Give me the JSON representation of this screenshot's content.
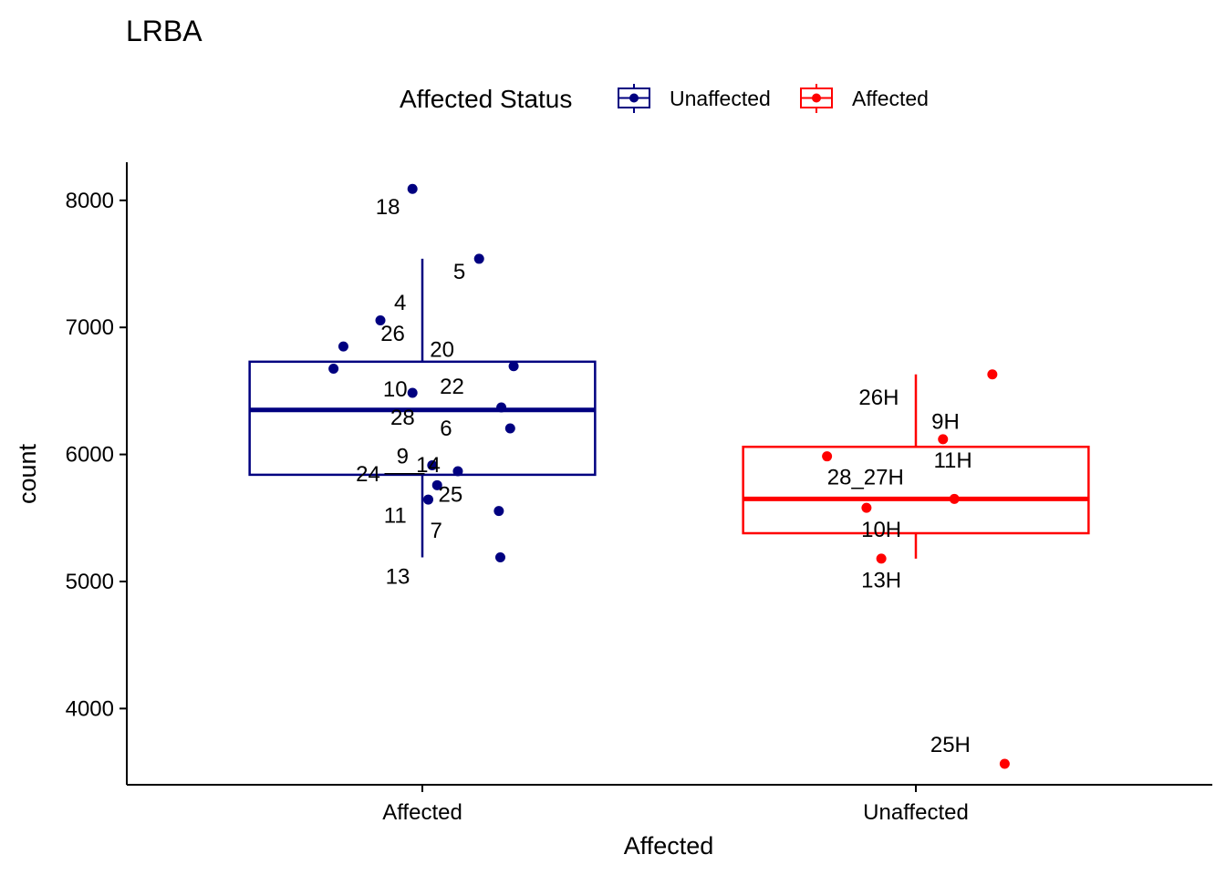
{
  "chart_data": {
    "type": "boxplot",
    "title": "LRBA",
    "xlabel": "Affected",
    "ylabel": "count",
    "ylim": [
      3400,
      8300
    ],
    "yticks": [
      4000,
      5000,
      6000,
      7000,
      8000
    ],
    "categories": [
      "Affected",
      "Unaffected"
    ],
    "legend": {
      "title": "Affected Status",
      "position": "top",
      "entries": [
        {
          "label": "Unaffected",
          "color": "#000080"
        },
        {
          "label": "Affected",
          "color": "#ff0000"
        }
      ]
    },
    "boxes": [
      {
        "category": "Affected",
        "group": "Unaffected",
        "color": "#000080",
        "whisker_low": 5190,
        "q1": 5840,
        "median": 6350,
        "q3": 6730,
        "whisker_high": 7540
      },
      {
        "category": "Unaffected",
        "group": "Affected",
        "color": "#ff0000",
        "whisker_low": 5180,
        "q1": 5380,
        "median": 5650,
        "q3": 6060,
        "whisker_high": 6630
      }
    ],
    "points": [
      {
        "category": "Affected",
        "color": "#000080",
        "jitter": -0.02,
        "y": 8090,
        "label": "18",
        "label_dx": -0.05,
        "label_dy": -140
      },
      {
        "category": "Affected",
        "color": "#000080",
        "jitter": 0.115,
        "y": 7540,
        "label": "5",
        "label_dx": -0.04,
        "label_dy": -100
      },
      {
        "category": "Affected",
        "color": "#000080",
        "jitter": -0.085,
        "y": 7055,
        "label": "4",
        "label_dx": 0.04,
        "label_dy": 140
      },
      {
        "category": "Affected",
        "color": "#000080",
        "jitter": -0.16,
        "y": 6850,
        "label": "26",
        "label_dx": 0.1,
        "label_dy": 100
      },
      {
        "category": "Affected",
        "color": "#000080",
        "jitter": -0.18,
        "y": 6675,
        "label": "20",
        "label_dx": 0.22,
        "label_dy": 150
      },
      {
        "category": "Affected",
        "color": "#000080",
        "jitter": 0.185,
        "y": 6695,
        "label": "10",
        "label_dx": -0.24,
        "label_dy": -180
      },
      {
        "category": "Affected",
        "color": "#000080",
        "jitter": -0.02,
        "y": 6485,
        "label": "22",
        "label_dx": 0.08,
        "label_dy": 50
      },
      {
        "category": "Affected",
        "color": "#000080",
        "jitter": 0.16,
        "y": 6370,
        "label": "28",
        "label_dx": -0.2,
        "label_dy": -80
      },
      {
        "category": "Affected",
        "color": "#000080",
        "jitter": 0.178,
        "y": 6205,
        "label": "6",
        "label_dx": -0.13,
        "label_dy": 0
      },
      {
        "category": "Affected",
        "color": "#000080",
        "jitter": 0.02,
        "y": 5915,
        "label": "9",
        "label_dx": -0.06,
        "label_dy": 70
      },
      {
        "category": "Affected",
        "color": "#000080",
        "jitter": 0.072,
        "y": 5868,
        "label": "14",
        "label_dx": -0.06,
        "label_dy": 50
      },
      {
        "category": "Affected",
        "color": "#000080",
        "jitter": 0.03,
        "y": 5758,
        "label": "24",
        "label_dx": -0.14,
        "label_dy": 90
      },
      {
        "category": "Affected",
        "color": "#000080",
        "jitter": 0.012,
        "y": 5645,
        "label": "25",
        "label_dx": 0.045,
        "label_dy": 40
      },
      {
        "category": "Affected",
        "color": "#000080",
        "jitter": 0.155,
        "y": 5555,
        "label": "11",
        "label_dx": -0.21,
        "label_dy": -35
      },
      {
        "category": "Affected",
        "color": "#000080",
        "jitter": 0.158,
        "y": 5190,
        "label": "7",
        "label_dx": -0.13,
        "label_dy": 210
      },
      {
        "category": "Affected",
        "color": "#000080",
        "jitter": null,
        "y": null,
        "label": "13",
        "label_x": -0.05,
        "label_y": 5040
      },
      {
        "category": "Unaffected",
        "color": "#ff0000",
        "jitter": 0.155,
        "y": 6630,
        "label": "26H",
        "label_dx": -0.23,
        "label_dy": -180
      },
      {
        "category": "Unaffected",
        "color": "#ff0000",
        "jitter": 0.055,
        "y": 6120,
        "label": "9H",
        "label_dx": 0.005,
        "label_dy": 140
      },
      {
        "category": "Unaffected",
        "color": "#ff0000",
        "jitter": -0.18,
        "y": 5985,
        "label": "11H",
        "label_dx": 0.255,
        "label_dy": -30
      },
      {
        "category": "Unaffected",
        "color": "#ff0000",
        "jitter": 0.078,
        "y": 5650,
        "label": "28_27H",
        "label_dx": -0.18,
        "label_dy": 170
      },
      {
        "category": "Unaffected",
        "color": "#ff0000",
        "jitter": -0.1,
        "y": 5580,
        "label": "10H",
        "label_dx": 0.03,
        "label_dy": -170
      },
      {
        "category": "Unaffected",
        "color": "#ff0000",
        "jitter": -0.07,
        "y": 5180,
        "label": "13H",
        "label_dx": 0,
        "label_dy": -170
      },
      {
        "category": "Unaffected",
        "color": "#ff0000",
        "jitter": 0.18,
        "y": 3565,
        "label": "25H",
        "label_dx": -0.11,
        "label_dy": 150
      }
    ]
  }
}
